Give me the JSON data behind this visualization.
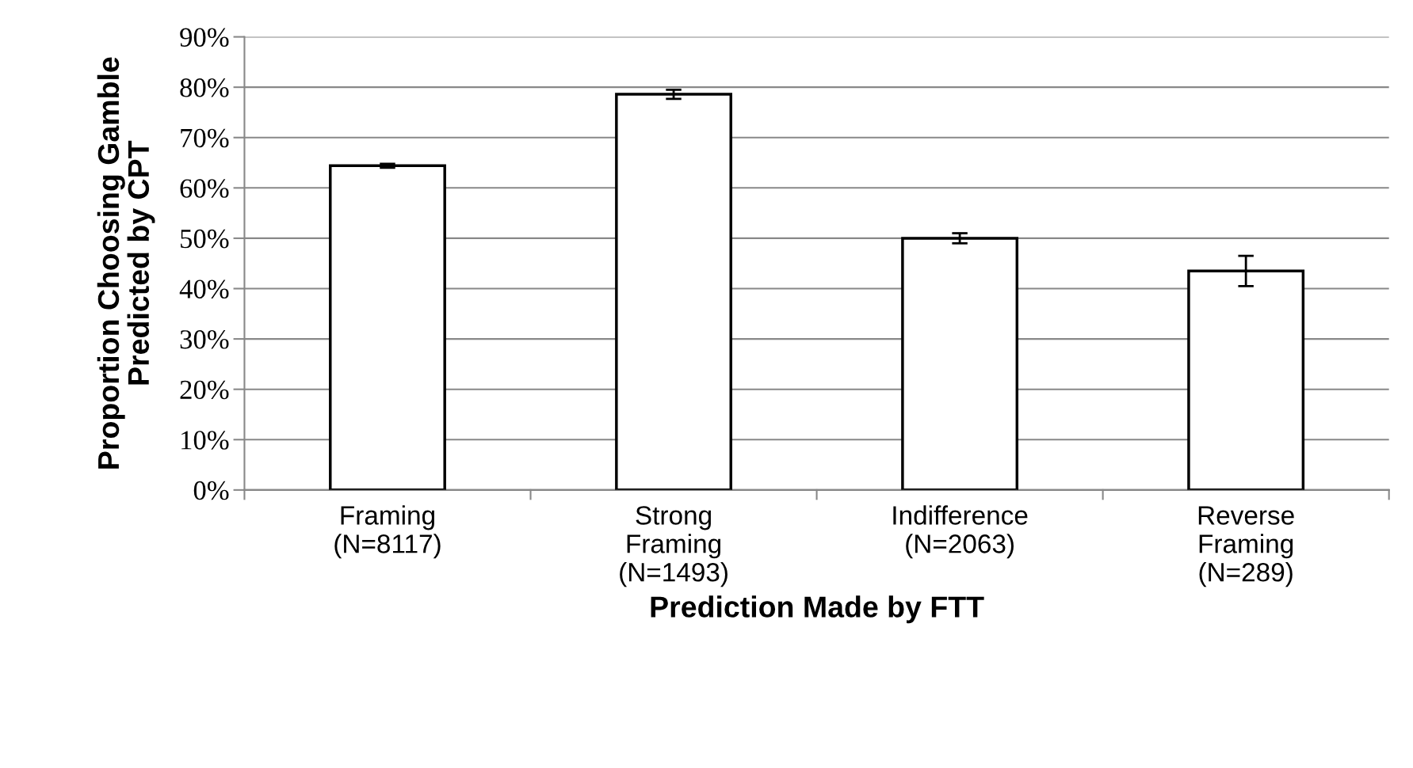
{
  "chart_data": {
    "type": "bar",
    "xlabel": "Prediction Made by FTT",
    "ylabel": "Proportion Choosing Gamble\nPredicted by CPT",
    "categories": [
      "Framing\n(N=8117)",
      "Strong\nFraming\n(N=1493)",
      "Indifference\n(N=2063)",
      "Reverse\nFraming\n(N=289)"
    ],
    "values": [
      64.4,
      78.6,
      50.0,
      43.5
    ],
    "errors": [
      0.4,
      0.9,
      1.0,
      3.0
    ],
    "color": "#ffffff",
    "ylim": [
      0,
      90
    ],
    "yticks": [
      {
        "value": 0,
        "label": "0%"
      },
      {
        "value": 10,
        "label": "10%"
      },
      {
        "value": 20,
        "label": "20%"
      },
      {
        "value": 30,
        "label": "30%"
      },
      {
        "value": 40,
        "label": "40%"
      },
      {
        "value": 50,
        "label": "50%"
      },
      {
        "value": 60,
        "label": "60%"
      },
      {
        "value": 70,
        "label": "70%"
      },
      {
        "value": 80,
        "label": "80%"
      },
      {
        "value": 90,
        "label": "90%"
      }
    ],
    "grid": "y"
  }
}
